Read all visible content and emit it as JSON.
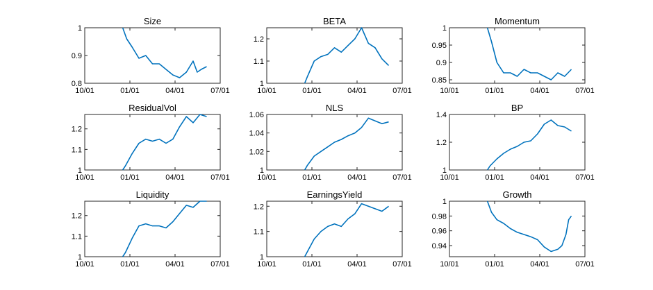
{
  "chart_data": [
    {
      "type": "line",
      "title": "Size",
      "xlabel": "",
      "ylabel": "",
      "xticks": [
        "10/01",
        "01/01",
        "04/01",
        "07/01"
      ],
      "yticks": [
        "0.8",
        "0.9",
        "1"
      ],
      "ytick_values": [
        0.8,
        0.9,
        1.0
      ],
      "ylim": [
        0.8,
        1.0
      ],
      "series": [
        {
          "x": [
            0.28,
            0.31,
            0.35,
            0.4,
            0.45,
            0.5,
            0.55,
            0.6,
            0.65,
            0.7,
            0.75,
            0.8,
            0.83,
            0.86,
            0.9
          ],
          "values": [
            1.0,
            0.96,
            0.93,
            0.89,
            0.9,
            0.87,
            0.87,
            0.85,
            0.83,
            0.82,
            0.84,
            0.88,
            0.84,
            0.85,
            0.86
          ]
        }
      ]
    },
    {
      "type": "line",
      "title": "BETA",
      "xlabel": "",
      "ylabel": "",
      "xticks": [
        "10/01",
        "01/01",
        "04/01",
        "07/01"
      ],
      "yticks": [
        "1",
        "1.1",
        "1.2"
      ],
      "ytick_values": [
        1.0,
        1.1,
        1.2
      ],
      "ylim": [
        1.0,
        1.25
      ],
      "series": [
        {
          "x": [
            0.28,
            0.3,
            0.35,
            0.4,
            0.45,
            0.5,
            0.55,
            0.6,
            0.65,
            0.7,
            0.75,
            0.8,
            0.85,
            0.9
          ],
          "values": [
            1.0,
            1.03,
            1.1,
            1.12,
            1.13,
            1.16,
            1.14,
            1.17,
            1.2,
            1.25,
            1.18,
            1.16,
            1.11,
            1.08
          ]
        }
      ]
    },
    {
      "type": "line",
      "title": "Momentum",
      "xlabel": "",
      "ylabel": "",
      "xticks": [
        "10/01",
        "01/01",
        "04/01",
        "07/01"
      ],
      "yticks": [
        "0.85",
        "0.9",
        "0.95",
        "1"
      ],
      "ytick_values": [
        0.85,
        0.9,
        0.95,
        1.0
      ],
      "ylim": [
        0.84,
        1.0
      ],
      "series": [
        {
          "x": [
            0.28,
            0.31,
            0.35,
            0.4,
            0.45,
            0.5,
            0.55,
            0.6,
            0.65,
            0.7,
            0.75,
            0.8,
            0.85,
            0.9
          ],
          "values": [
            1.0,
            0.96,
            0.9,
            0.87,
            0.87,
            0.86,
            0.88,
            0.87,
            0.87,
            0.86,
            0.85,
            0.87,
            0.86,
            0.88
          ]
        }
      ]
    },
    {
      "type": "line",
      "title": "ResidualVol",
      "xlabel": "",
      "ylabel": "",
      "xticks": [
        "10/01",
        "01/01",
        "04/01",
        "07/01"
      ],
      "yticks": [
        "1",
        "1.1",
        "1.2"
      ],
      "ytick_values": [
        1.0,
        1.1,
        1.2
      ],
      "ylim": [
        1.0,
        1.27
      ],
      "series": [
        {
          "x": [
            0.28,
            0.3,
            0.35,
            0.4,
            0.45,
            0.5,
            0.55,
            0.6,
            0.65,
            0.7,
            0.75,
            0.8,
            0.85,
            0.9
          ],
          "values": [
            1.0,
            1.02,
            1.08,
            1.13,
            1.15,
            1.14,
            1.15,
            1.13,
            1.15,
            1.21,
            1.26,
            1.23,
            1.27,
            1.26
          ]
        }
      ]
    },
    {
      "type": "line",
      "title": "NLS",
      "xlabel": "",
      "ylabel": "",
      "xticks": [
        "10/01",
        "01/01",
        "04/01",
        "07/01"
      ],
      "yticks": [
        "1",
        "1.02",
        "1.04",
        "1.06"
      ],
      "ytick_values": [
        1.0,
        1.02,
        1.04,
        1.06
      ],
      "ylim": [
        1.0,
        1.06
      ],
      "series": [
        {
          "x": [
            0.28,
            0.3,
            0.35,
            0.4,
            0.45,
            0.5,
            0.55,
            0.6,
            0.65,
            0.7,
            0.75,
            0.8,
            0.85,
            0.9
          ],
          "values": [
            1.0,
            1.005,
            1.015,
            1.02,
            1.025,
            1.03,
            1.033,
            1.037,
            1.04,
            1.046,
            1.056,
            1.053,
            1.05,
            1.052
          ]
        }
      ]
    },
    {
      "type": "line",
      "title": "BP",
      "xlabel": "",
      "ylabel": "",
      "xticks": [
        "10/01",
        "01/01",
        "04/01",
        "07/01"
      ],
      "yticks": [
        "1",
        "1.2",
        "1.4"
      ],
      "ytick_values": [
        1.0,
        1.2,
        1.4
      ],
      "ylim": [
        1.0,
        1.4
      ],
      "series": [
        {
          "x": [
            0.28,
            0.3,
            0.35,
            0.4,
            0.45,
            0.5,
            0.55,
            0.6,
            0.65,
            0.7,
            0.75,
            0.8,
            0.85,
            0.9
          ],
          "values": [
            1.0,
            1.03,
            1.08,
            1.12,
            1.15,
            1.17,
            1.2,
            1.21,
            1.26,
            1.33,
            1.36,
            1.32,
            1.31,
            1.28
          ]
        }
      ]
    },
    {
      "type": "line",
      "title": "Liquidity",
      "xlabel": "",
      "ylabel": "",
      "xticks": [
        "10/01",
        "01/01",
        "04/01",
        "07/01"
      ],
      "yticks": [
        "1",
        "1.1",
        "1.2"
      ],
      "ytick_values": [
        1.0,
        1.1,
        1.2
      ],
      "ylim": [
        1.0,
        1.27
      ],
      "series": [
        {
          "x": [
            0.28,
            0.3,
            0.35,
            0.4,
            0.45,
            0.5,
            0.55,
            0.6,
            0.65,
            0.7,
            0.75,
            0.8,
            0.85,
            0.9
          ],
          "values": [
            1.0,
            1.02,
            1.09,
            1.15,
            1.16,
            1.15,
            1.15,
            1.14,
            1.17,
            1.21,
            1.25,
            1.24,
            1.27,
            1.27
          ]
        }
      ]
    },
    {
      "type": "line",
      "title": "EarningsYield",
      "xlabel": "",
      "ylabel": "",
      "xticks": [
        "10/01",
        "01/01",
        "04/01",
        "07/01"
      ],
      "yticks": [
        "1",
        "1.1",
        "1.2"
      ],
      "ytick_values": [
        1.0,
        1.1,
        1.2
      ],
      "ylim": [
        1.0,
        1.22
      ],
      "series": [
        {
          "x": [
            0.28,
            0.3,
            0.35,
            0.4,
            0.45,
            0.5,
            0.55,
            0.6,
            0.65,
            0.7,
            0.75,
            0.8,
            0.85,
            0.9
          ],
          "values": [
            1.0,
            1.02,
            1.07,
            1.1,
            1.12,
            1.13,
            1.12,
            1.15,
            1.17,
            1.21,
            1.2,
            1.19,
            1.18,
            1.2
          ]
        }
      ]
    },
    {
      "type": "line",
      "title": "Growth",
      "xlabel": "",
      "ylabel": "",
      "xticks": [
        "10/01",
        "01/01",
        "04/01",
        "07/01"
      ],
      "yticks": [
        "0.94",
        "0.96",
        "0.98",
        "1"
      ],
      "ytick_values": [
        0.94,
        0.96,
        0.98,
        1.0
      ],
      "ylim": [
        0.925,
        1.0
      ],
      "series": [
        {
          "x": [
            0.28,
            0.31,
            0.35,
            0.4,
            0.45,
            0.5,
            0.55,
            0.6,
            0.65,
            0.7,
            0.75,
            0.8,
            0.83,
            0.86,
            0.88,
            0.9
          ],
          "values": [
            1.0,
            0.985,
            0.975,
            0.97,
            0.963,
            0.958,
            0.955,
            0.952,
            0.948,
            0.938,
            0.932,
            0.935,
            0.94,
            0.955,
            0.975,
            0.98
          ]
        }
      ]
    }
  ]
}
